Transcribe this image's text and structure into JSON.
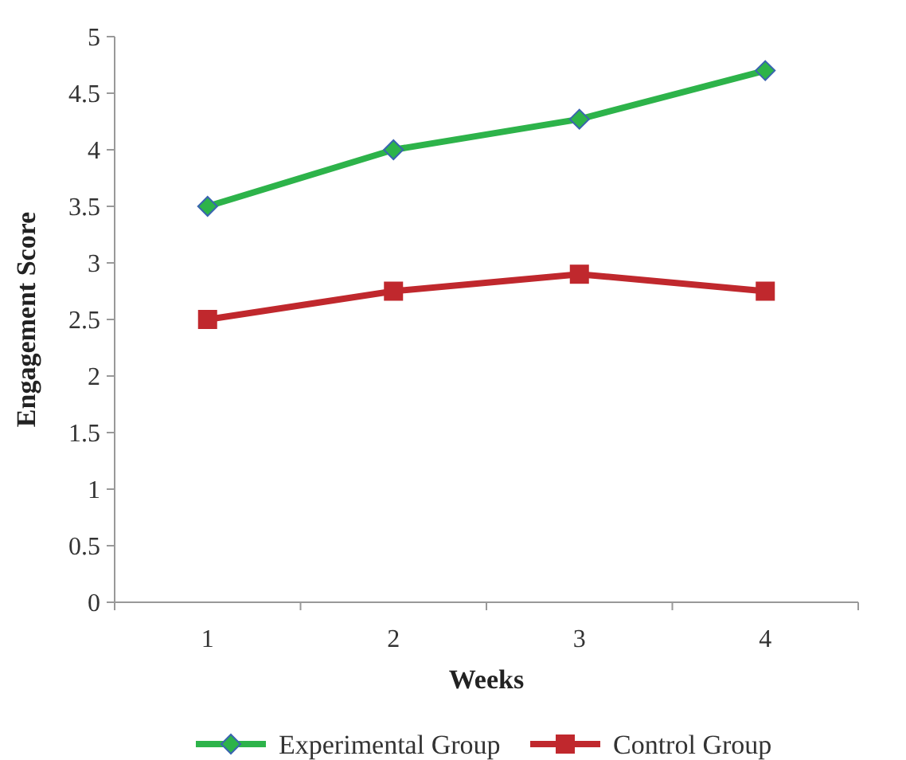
{
  "chart_data": {
    "type": "line",
    "xlabel": "Weeks",
    "ylabel": "Engagement Score",
    "categories": [
      "1",
      "2",
      "3",
      "4"
    ],
    "series": [
      {
        "name": "Experimental Group",
        "color": "#2db34a",
        "marker": "diamond",
        "values": [
          3.5,
          4.0,
          4.27,
          4.7
        ]
      },
      {
        "name": "Control Group",
        "color": "#c0282d",
        "marker": "square",
        "values": [
          2.5,
          2.75,
          2.9,
          2.75
        ]
      }
    ],
    "ylim": [
      0,
      5
    ],
    "yticks": [
      0,
      {
        "value": 0.5,
        "label": "0.5"
      },
      1,
      {
        "value": 1.5,
        "label": "1.5"
      },
      2,
      {
        "value": 2.5,
        "label": "2.5"
      },
      3,
      {
        "value": 3.5,
        "label": "3.5"
      },
      4,
      {
        "value": 4.5,
        "label": "4.5"
      },
      5
    ],
    "grid": false,
    "legend": "bottom"
  }
}
